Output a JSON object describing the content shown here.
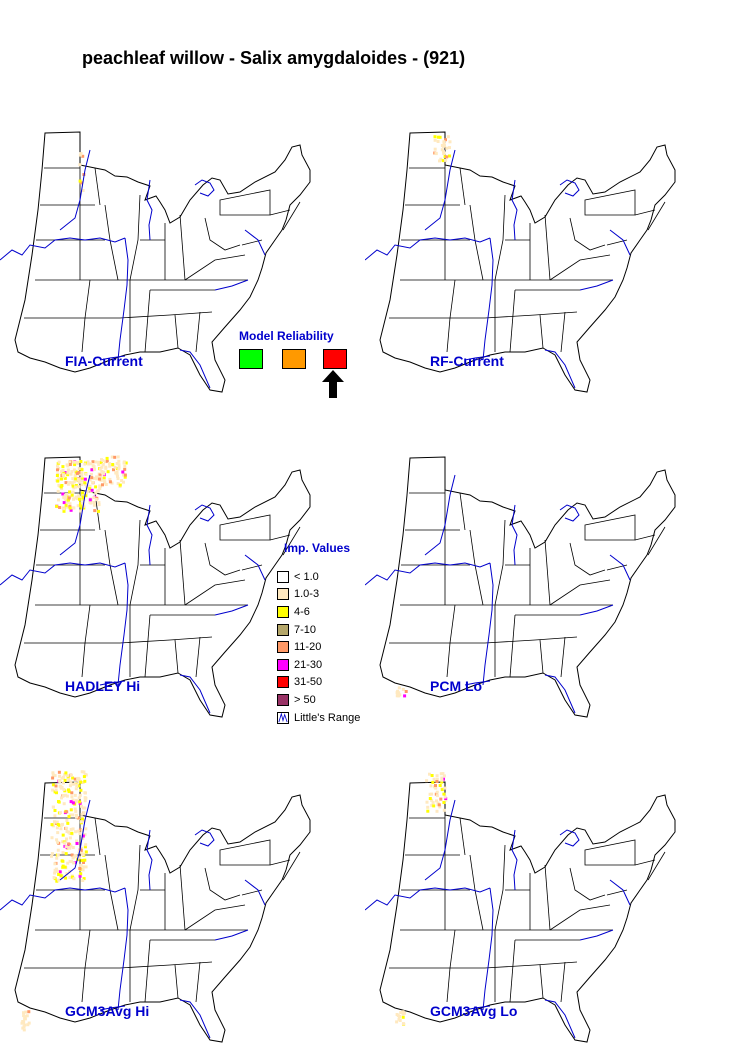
{
  "title": "peachleaf willow - Salix amygdaloides - (921)",
  "maps": [
    {
      "label": "FIA-Current"
    },
    {
      "label": "RF-Current"
    },
    {
      "label": "HADLEY Hi"
    },
    {
      "label": "PCM Lo"
    },
    {
      "label": "GCM3Avg Hi"
    },
    {
      "label": "GCM3Avg Lo"
    }
  ],
  "reliability": {
    "title": "Model Reliability",
    "levels": [
      {
        "color": "#00ff00",
        "selected": false
      },
      {
        "color": "#ff9900",
        "selected": false
      },
      {
        "color": "#ff0000",
        "selected": true
      }
    ]
  },
  "legend": {
    "title": "Imp. Values",
    "classes": [
      {
        "label": "< 1.0",
        "color": "#ffffff"
      },
      {
        "label": "1.0-3",
        "color": "#ffe9c0"
      },
      {
        "label": "4-6",
        "color": "#ffff00"
      },
      {
        "label": "7-10",
        "color": "#b5a76a"
      },
      {
        "label": "11-20",
        "color": "#ff9966"
      },
      {
        "label": "21-30",
        "color": "#ff00ff"
      },
      {
        "label": "31-50",
        "color": "#ff0000"
      },
      {
        "label": "> 50",
        "color": "#993366"
      }
    ],
    "range_label": "Little's Range",
    "range_color": "#0000cc"
  }
}
